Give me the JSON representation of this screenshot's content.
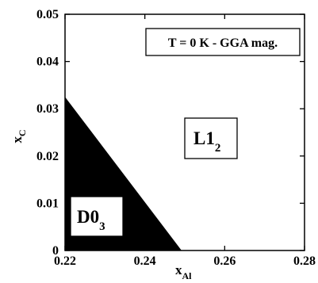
{
  "chart_data": {
    "type": "area",
    "title": "",
    "xlabel": {
      "main": "x",
      "sub": "Al"
    },
    "ylabel": {
      "main": "x",
      "sub": "C"
    },
    "xlim": [
      0.22,
      0.28
    ],
    "ylim": [
      0,
      0.05
    ],
    "x_ticks": [
      "0.22",
      "0.24",
      "0.26",
      "0.28"
    ],
    "y_ticks": [
      "0",
      "0.01",
      "0.02",
      "0.03",
      "0.04",
      "0.05"
    ],
    "legend_box": "T = 0 K - GGA mag.",
    "regions": [
      {
        "name": "D0_3",
        "label": {
          "main": "D0",
          "sub": "3"
        },
        "fill": "#000000",
        "polygon_data": [
          [
            0.22,
            0.0
          ],
          [
            0.2492,
            0.0
          ],
          [
            0.22,
            0.0325
          ]
        ]
      },
      {
        "name": "L1_2",
        "label": {
          "main": "L1",
          "sub": "2"
        },
        "fill": "#ffffff"
      }
    ]
  }
}
